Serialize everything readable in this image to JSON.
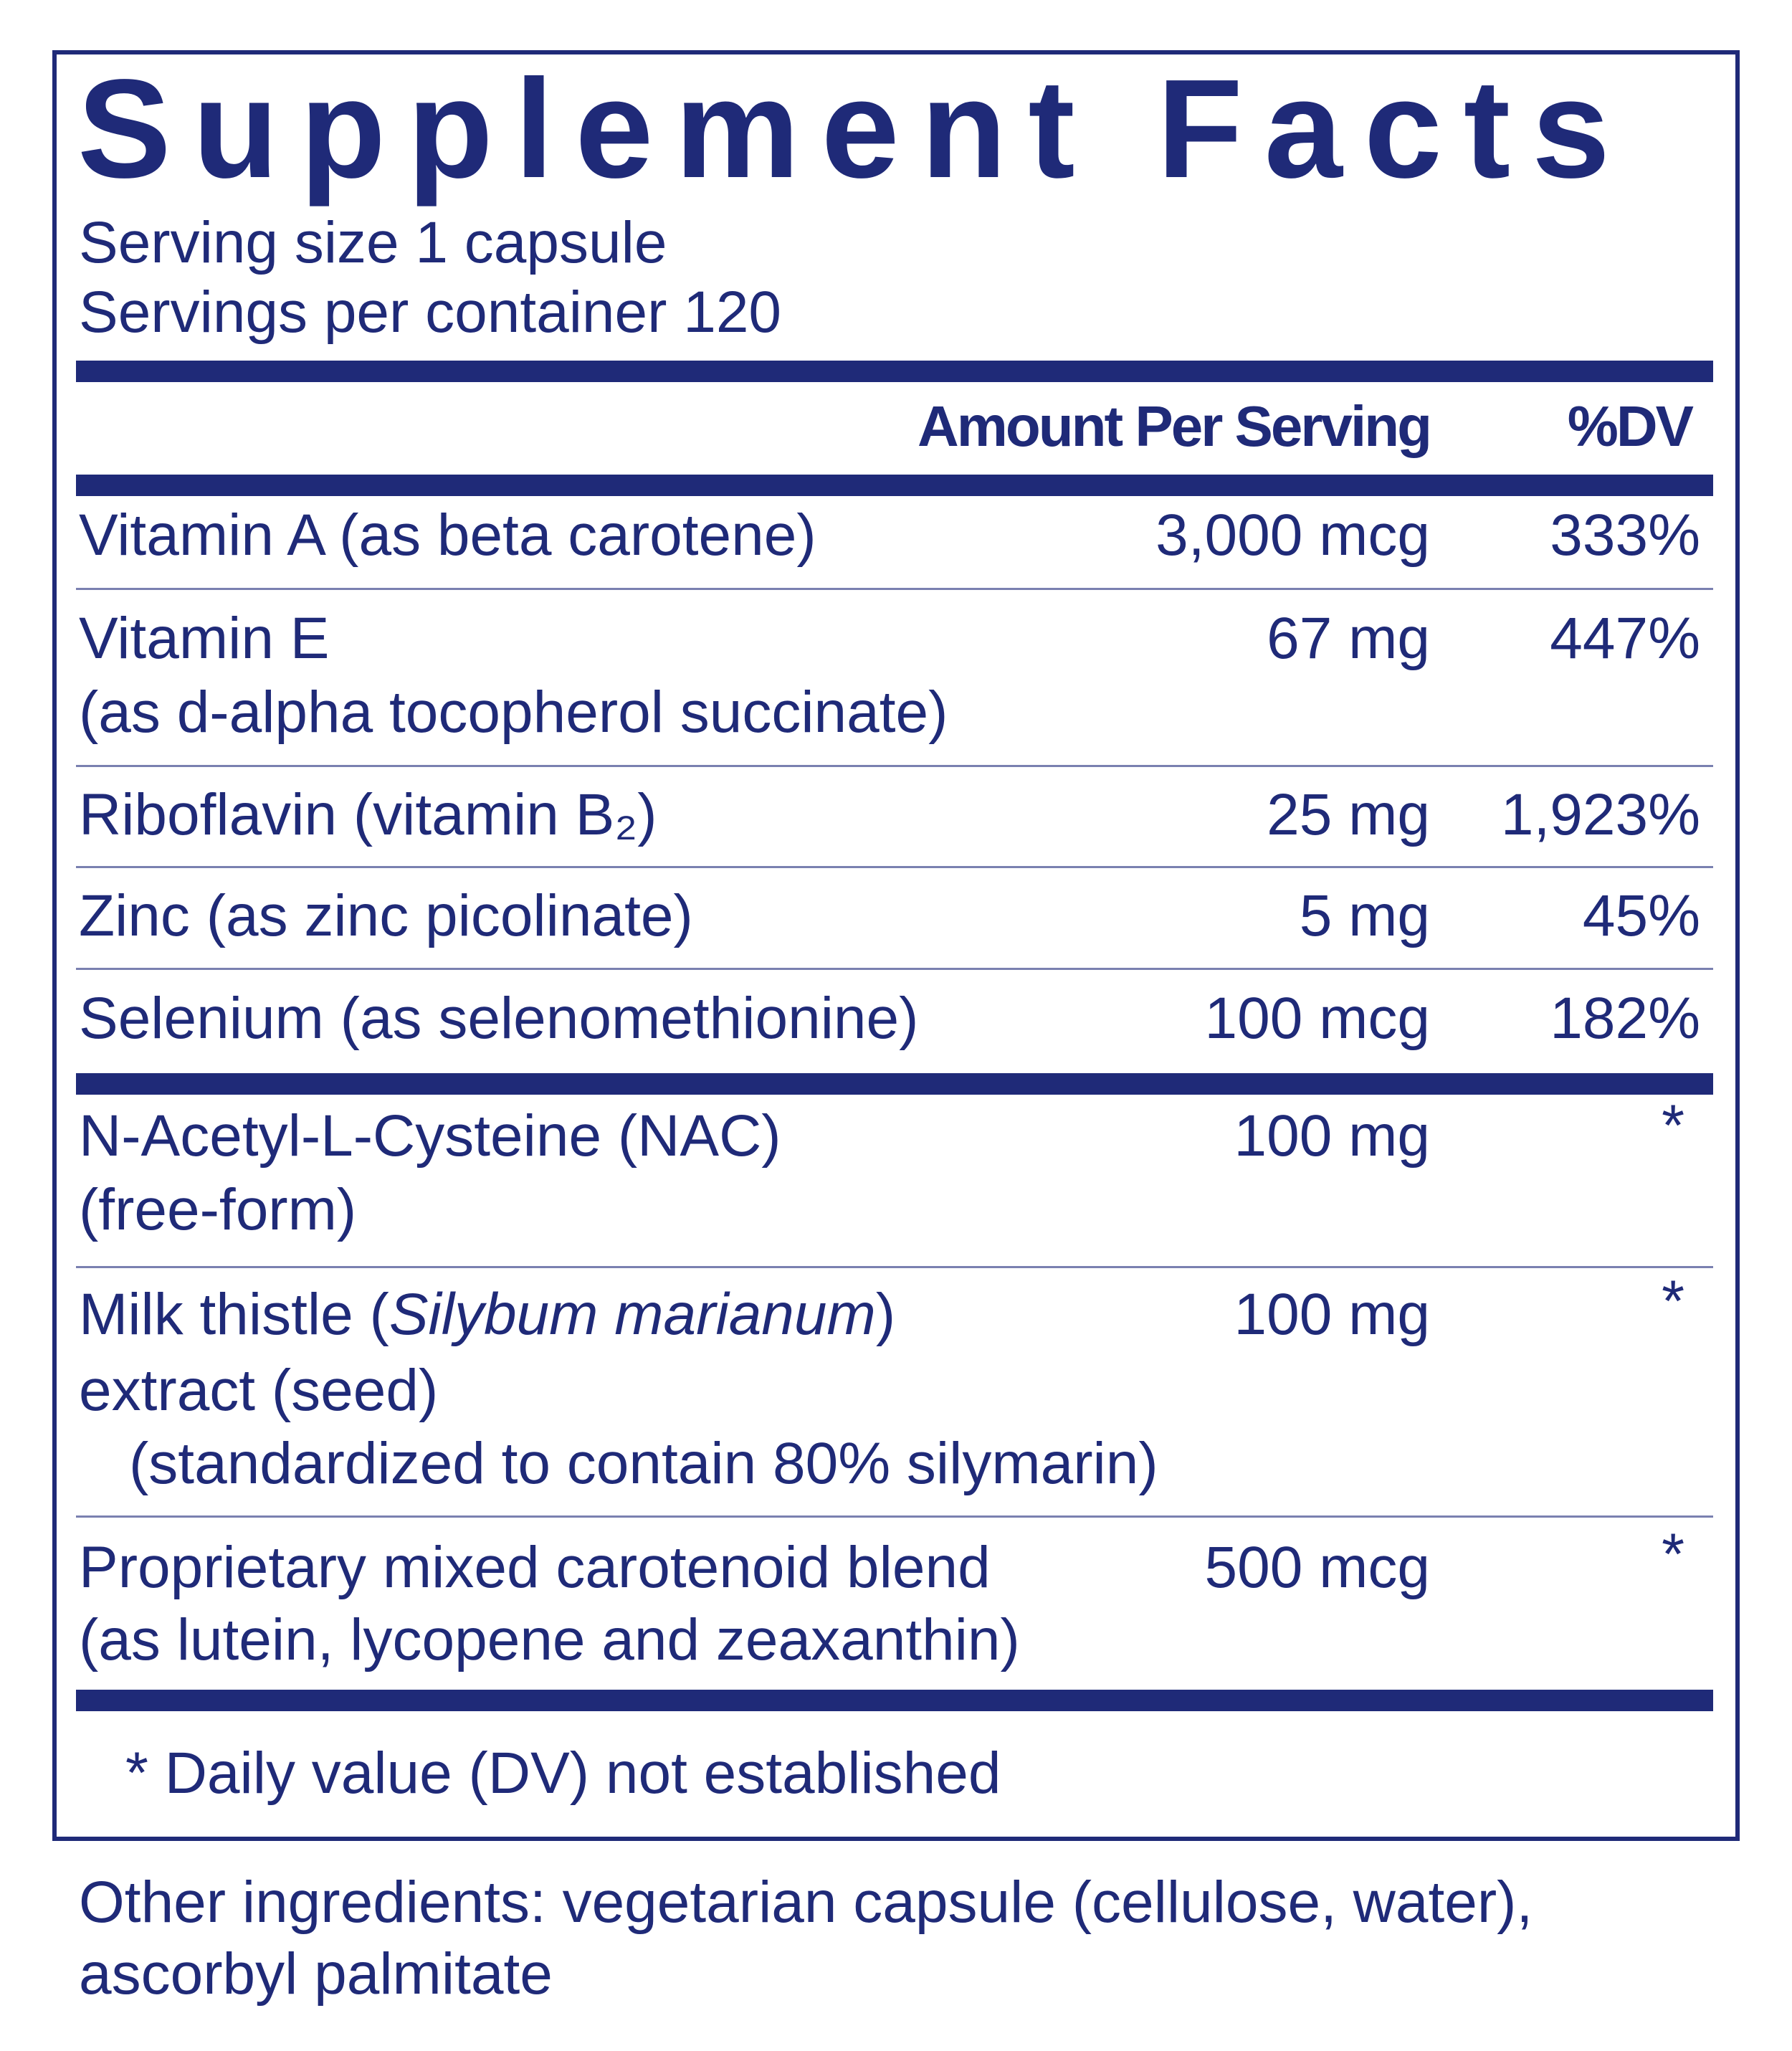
{
  "header": {
    "title": "Supplement Facts",
    "serving_size": "Serving size  1 capsule",
    "servings_per_container": "Servings per container  120"
  },
  "table": {
    "columns": [
      "Amount Per Serving",
      "%DV"
    ],
    "rows": [
      {
        "name": [
          "Vitamin A (as beta carotene)"
        ],
        "amount": "3,000 mcg",
        "dv": "333%"
      },
      {
        "name": [
          "Vitamin E",
          "(as d-alpha tocopherol succinate)"
        ],
        "amount": "67 mg",
        "dv": "447%"
      },
      {
        "name": [
          "Riboflavin (vitamin B₂)"
        ],
        "amount": "25 mg",
        "dv": "1,923%"
      },
      {
        "name": [
          "Zinc (as zinc picolinate)"
        ],
        "amount": "5 mg",
        "dv": "45%"
      },
      {
        "name": [
          "Selenium (as selenomethionine)"
        ],
        "amount": "100 mcg",
        "dv": "182%"
      },
      {
        "name": [
          "N-Acetyl-L-Cysteine (NAC)",
          "(free-form)"
        ],
        "amount": "100 mg",
        "dv": "*"
      },
      {
        "name": [
          [
            "Milk thistle (",
            "Silybum marianum",
            ")"
          ],
          "extract (seed)",
          "(standardized to contain 80% silymarin)"
        ],
        "amount": "100 mg",
        "dv": "*"
      },
      {
        "name": [
          "Proprietary mixed carotenoid blend",
          "(as lutein, lycopene and zeaxanthin)"
        ],
        "amount": "500 mcg",
        "dv": "*"
      }
    ]
  },
  "footnote": "* Daily value (DV) not established",
  "other_ingredients": [
    "Other ingredients: vegetarian capsule (cellulose, water),",
    "ascorbyl palmitate"
  ]
}
